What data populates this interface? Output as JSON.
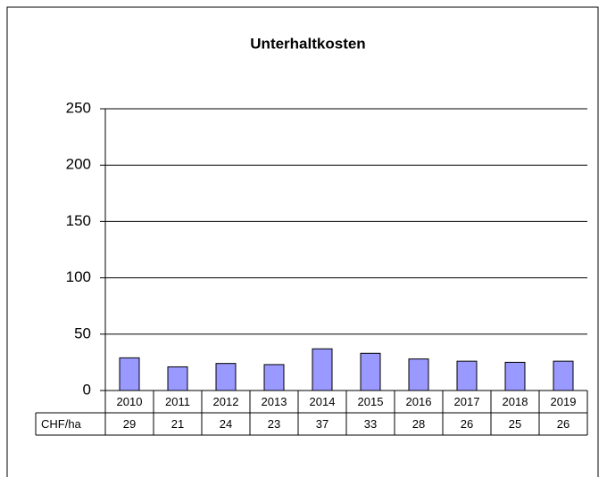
{
  "chart_data": {
    "type": "bar",
    "title": "Unterhaltkosten",
    "categories": [
      "2010",
      "2011",
      "2012",
      "2013",
      "2014",
      "2015",
      "2016",
      "2017",
      "2018",
      "2019"
    ],
    "series": [
      {
        "name": "CHF/ha",
        "color": "#9999ff",
        "values": [
          29,
          21,
          24,
          23,
          37,
          33,
          28,
          26,
          25,
          26
        ]
      }
    ],
    "ylim": [
      0,
      250
    ],
    "yticks": [
      0,
      50,
      100,
      150,
      200,
      250
    ],
    "grid": true
  }
}
